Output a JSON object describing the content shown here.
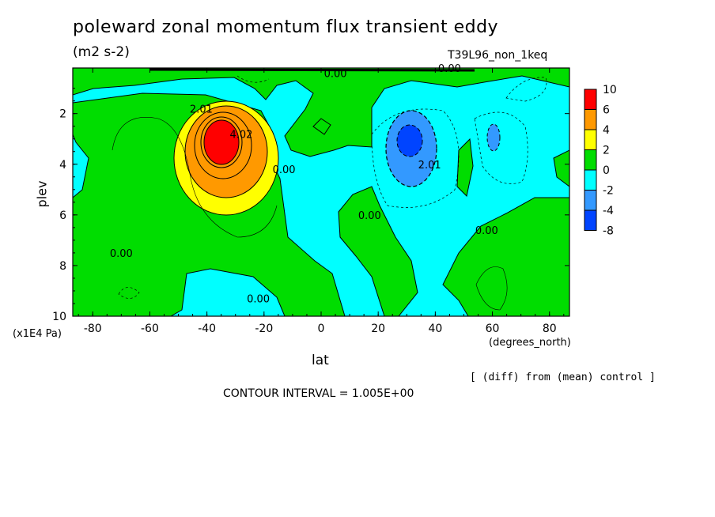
{
  "title": "poleward zonal momentum flux transient eddy",
  "units": "(m2 s-2)",
  "run_label": "T39L96_non_1keq",
  "y_label": "plev",
  "y_unit": "(x1E4 Pa)",
  "x_label": "lat",
  "x_unit": "(degrees_north)",
  "note": "[ (diff) from (mean) control ]",
  "contour_interval": "CONTOUR INTERVAL = 1.005E+00",
  "chart_data": {
    "type": "heatmap",
    "subtype": "filled contour",
    "xlim": [
      -87,
      87
    ],
    "ylim": [
      10,
      0.2
    ],
    "x_ticks": [
      -80,
      -60,
      -40,
      -20,
      0,
      20,
      40,
      60,
      80
    ],
    "y_ticks": [
      2,
      4,
      6,
      8,
      10
    ],
    "colorbar": {
      "levels": [
        10,
        6,
        4,
        2,
        0,
        -2,
        -4,
        -8
      ],
      "colors": [
        "#ff0000",
        "#ff9900",
        "#ffff00",
        "#00dd00",
        "#00ffff",
        "#3399ff",
        "#0044ff"
      ]
    },
    "contour_labels": [
      {
        "text": "0.00",
        "x": 5,
        "y": 0.4
      },
      {
        "text": "0.00",
        "x": 45,
        "y": 0.2
      },
      {
        "text": "2.01",
        "x": -42,
        "y": 1.8
      },
      {
        "text": "4.02",
        "x": -28,
        "y": 2.8
      },
      {
        "text": "0.00",
        "x": -13,
        "y": 4.2
      },
      {
        "text": "0.00",
        "x": -70,
        "y": 7.5
      },
      {
        "text": "0.00",
        "x": -22,
        "y": 9.3
      },
      {
        "text": "0.00",
        "x": 17,
        "y": 6.0
      },
      {
        "text": "2.01",
        "x": 38,
        "y": 4.0
      },
      {
        "text": "0.00",
        "x": 58,
        "y": 6.6
      }
    ],
    "features": [
      {
        "sign": "positive",
        "center_lat": -35,
        "center_plev": 3.0,
        "peak": 10
      },
      {
        "sign": "negative",
        "center_lat": 32,
        "center_plev": 3.0,
        "peak": -5
      },
      {
        "sign": "negative",
        "center_lat": 61,
        "center_plev": 2.8,
        "peak": -3
      }
    ]
  }
}
